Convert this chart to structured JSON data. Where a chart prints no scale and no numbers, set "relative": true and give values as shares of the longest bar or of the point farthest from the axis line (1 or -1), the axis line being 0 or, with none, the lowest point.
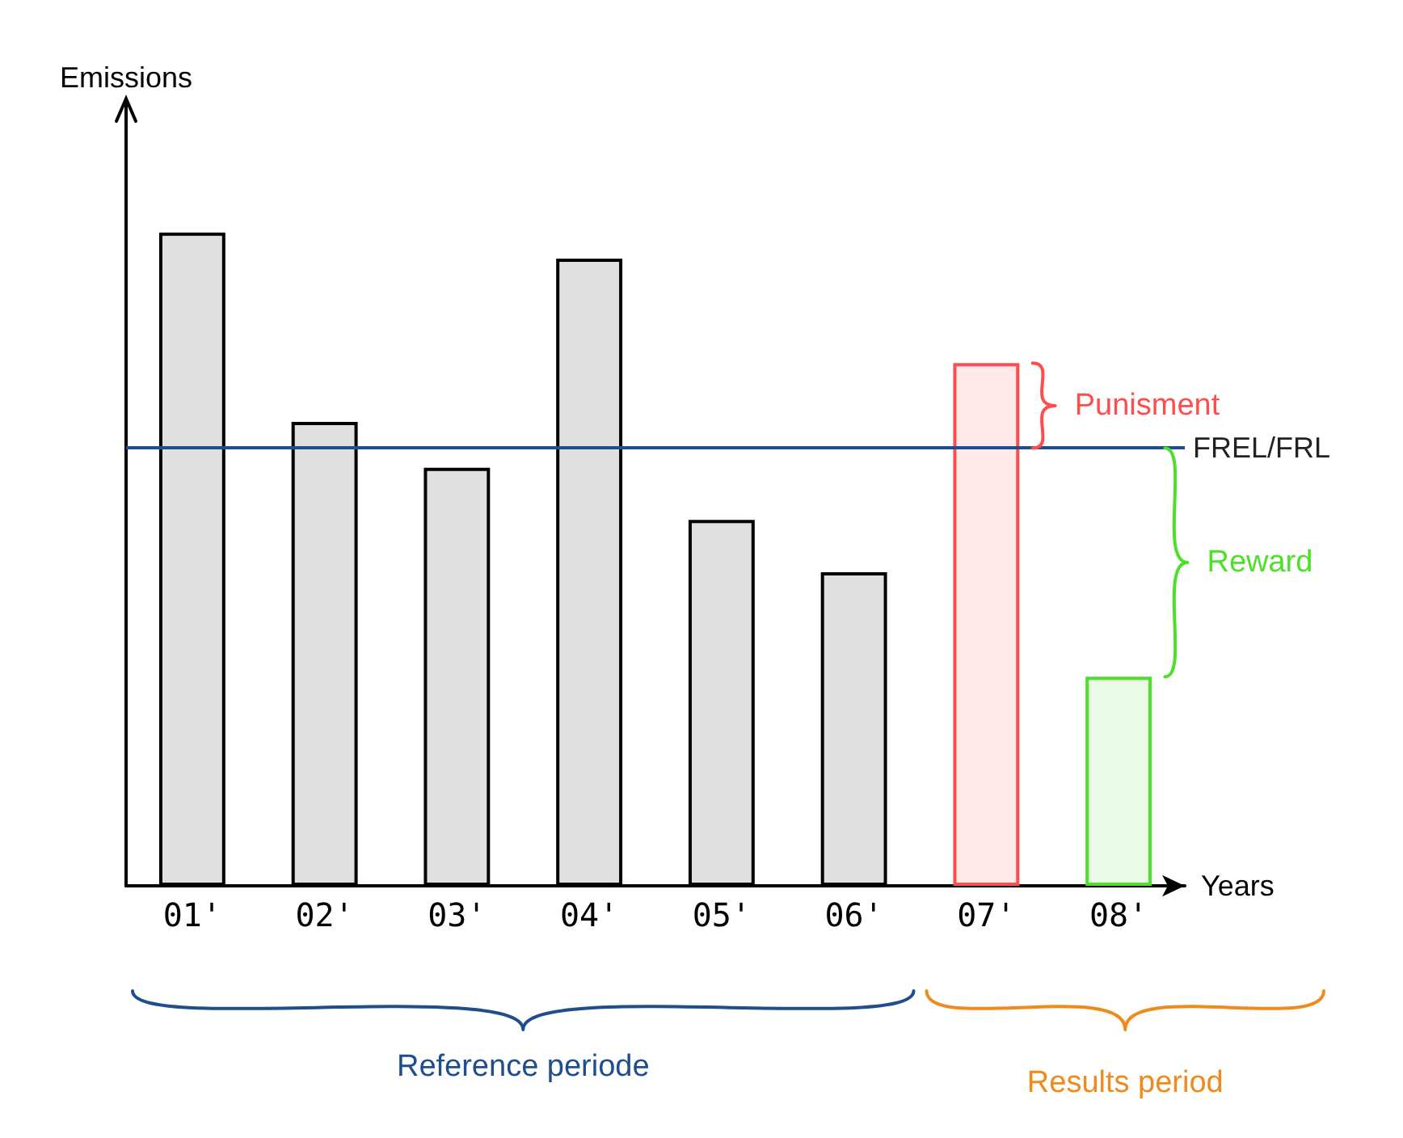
{
  "chart_data": {
    "type": "bar",
    "relative": true,
    "xlabel": "Years",
    "ylabel": "Emissions",
    "categories": [
      "01'",
      "02'",
      "03'",
      "04'",
      "05'",
      "06'",
      "07'",
      "08'"
    ],
    "values": [
      1,
      0.71,
      0.64,
      0.96,
      0.56,
      0.48,
      0.8,
      0.32
    ],
    "colors": [
      "#000000",
      "#000000",
      "#000000",
      "#000000",
      "#000000",
      "#000000",
      "#ff4d4d",
      "#4ddf2a"
    ],
    "ref_lines": [
      {
        "axis": "y",
        "value": 0.67,
        "label": "FREL/FRL",
        "color": "#1f4e8c"
      }
    ],
    "annotations": [
      "Punisment",
      "Reward",
      "Reference periode",
      "Results period"
    ],
    "grid": false
  }
}
